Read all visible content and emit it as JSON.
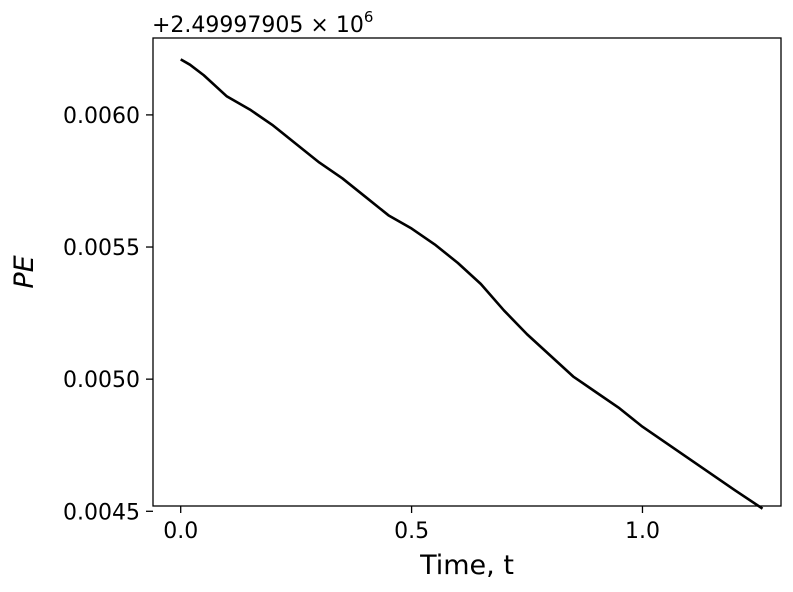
{
  "chart_data": {
    "type": "line",
    "xlabel": "Time, t",
    "ylabel": "PE",
    "offset_text": "+2.49997905 × 10",
    "offset_exponent": "6",
    "xlim": [
      -0.06,
      1.3
    ],
    "ylim": [
      0.00452,
      0.006291
    ],
    "x_ticks": [
      0.0,
      0.5,
      1.0
    ],
    "x_tick_labels": [
      "0.0",
      "0.5",
      "1.0"
    ],
    "y_ticks": [
      0.0045,
      0.005,
      0.0055,
      0.006
    ],
    "y_tick_labels": [
      "0.0045",
      "0.0050",
      "0.0055",
      "0.0060"
    ],
    "grid": false,
    "series": [
      {
        "color": "#000000",
        "x": [
          0.0,
          0.02,
          0.05,
          0.1,
          0.15,
          0.2,
          0.25,
          0.3,
          0.35,
          0.4,
          0.45,
          0.5,
          0.55,
          0.6,
          0.65,
          0.7,
          0.75,
          0.8,
          0.85,
          0.9,
          0.95,
          1.0,
          1.05,
          1.1,
          1.15,
          1.2,
          1.26
        ],
        "y": [
          0.00621,
          0.00619,
          0.00615,
          0.00607,
          0.00602,
          0.00596,
          0.00589,
          0.00582,
          0.00576,
          0.00569,
          0.00562,
          0.00557,
          0.00551,
          0.00544,
          0.00536,
          0.00526,
          0.00517,
          0.00509,
          0.00501,
          0.00495,
          0.00489,
          0.00482,
          0.00476,
          0.0047,
          0.00464,
          0.00458,
          0.00451
        ]
      }
    ]
  }
}
